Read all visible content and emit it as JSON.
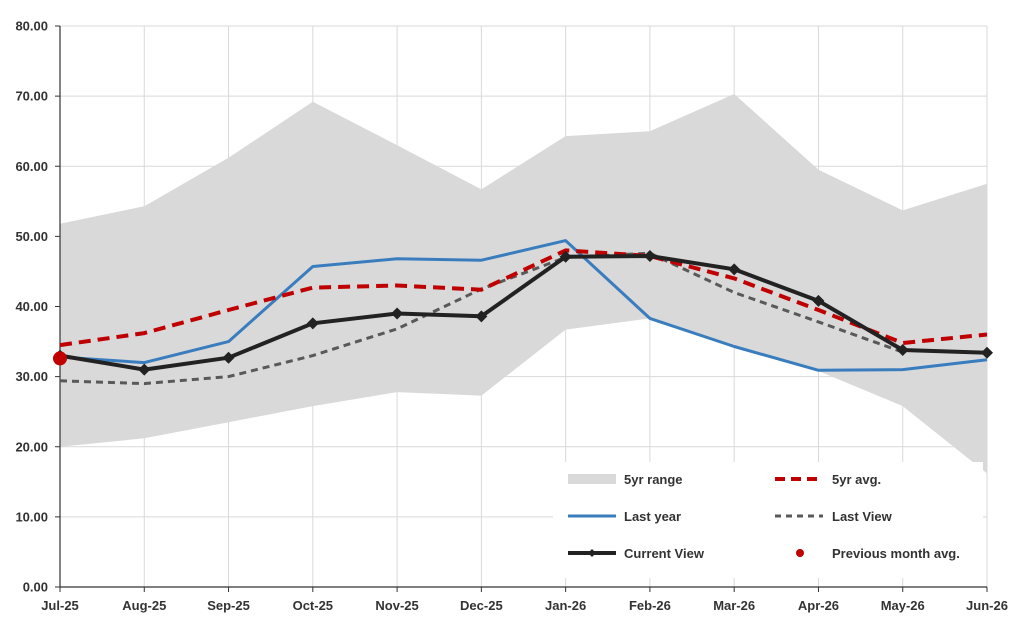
{
  "chart_data": {
    "type": "line",
    "title": "",
    "xlabel": "",
    "ylabel": "",
    "ylim": [
      0,
      80
    ],
    "ytick_step": 10,
    "ytick_format": "2dp",
    "grid": true,
    "categories": [
      "Jul-25",
      "Aug-25",
      "Sep-25",
      "Oct-25",
      "Nov-25",
      "Dec-25",
      "Jan-26",
      "Feb-26",
      "Mar-26",
      "Apr-26",
      "May-26",
      "Jun-26"
    ],
    "range": {
      "name": "5yr range",
      "color": "#d9d9d9",
      "low": [
        20.0,
        21.2,
        23.5,
        25.8,
        27.8,
        27.3,
        36.7,
        38.3,
        34.3,
        30.8,
        25.8,
        16.2
      ],
      "high": [
        51.8,
        54.3,
        61.2,
        69.2,
        63.0,
        56.7,
        64.3,
        65.0,
        70.3,
        59.5,
        53.7,
        57.5
      ]
    },
    "series": [
      {
        "name": "5yr avg.",
        "color": "#c00000",
        "style": "dashed-thick",
        "values": [
          34.5,
          36.2,
          39.5,
          42.7,
          43.0,
          42.4,
          48.0,
          47.2,
          44.0,
          39.5,
          34.8,
          36.0
        ]
      },
      {
        "name": "Last year",
        "color": "#3a7dbf",
        "style": "solid",
        "values": [
          32.8,
          32.0,
          35.0,
          45.7,
          46.8,
          46.6,
          49.4,
          38.3,
          34.3,
          30.9,
          31.0,
          32.4
        ]
      },
      {
        "name": "Last View",
        "color": "#595959",
        "style": "dashed",
        "values": [
          29.4,
          29.0,
          30.0,
          33.0,
          36.8,
          42.5,
          47.0,
          47.6,
          42.0,
          37.8,
          33.5,
          null
        ]
      },
      {
        "name": "Current View",
        "color": "#222222",
        "style": "solid-markers",
        "values": [
          33.0,
          31.0,
          32.7,
          37.6,
          39.0,
          38.6,
          47.1,
          47.2,
          45.3,
          40.8,
          33.8,
          33.4
        ]
      }
    ],
    "points": [
      {
        "name": "Previous month avg.",
        "color": "#c00000",
        "category": "Jul-25",
        "value": 32.6
      }
    ],
    "legend_position": "bottom-right"
  }
}
